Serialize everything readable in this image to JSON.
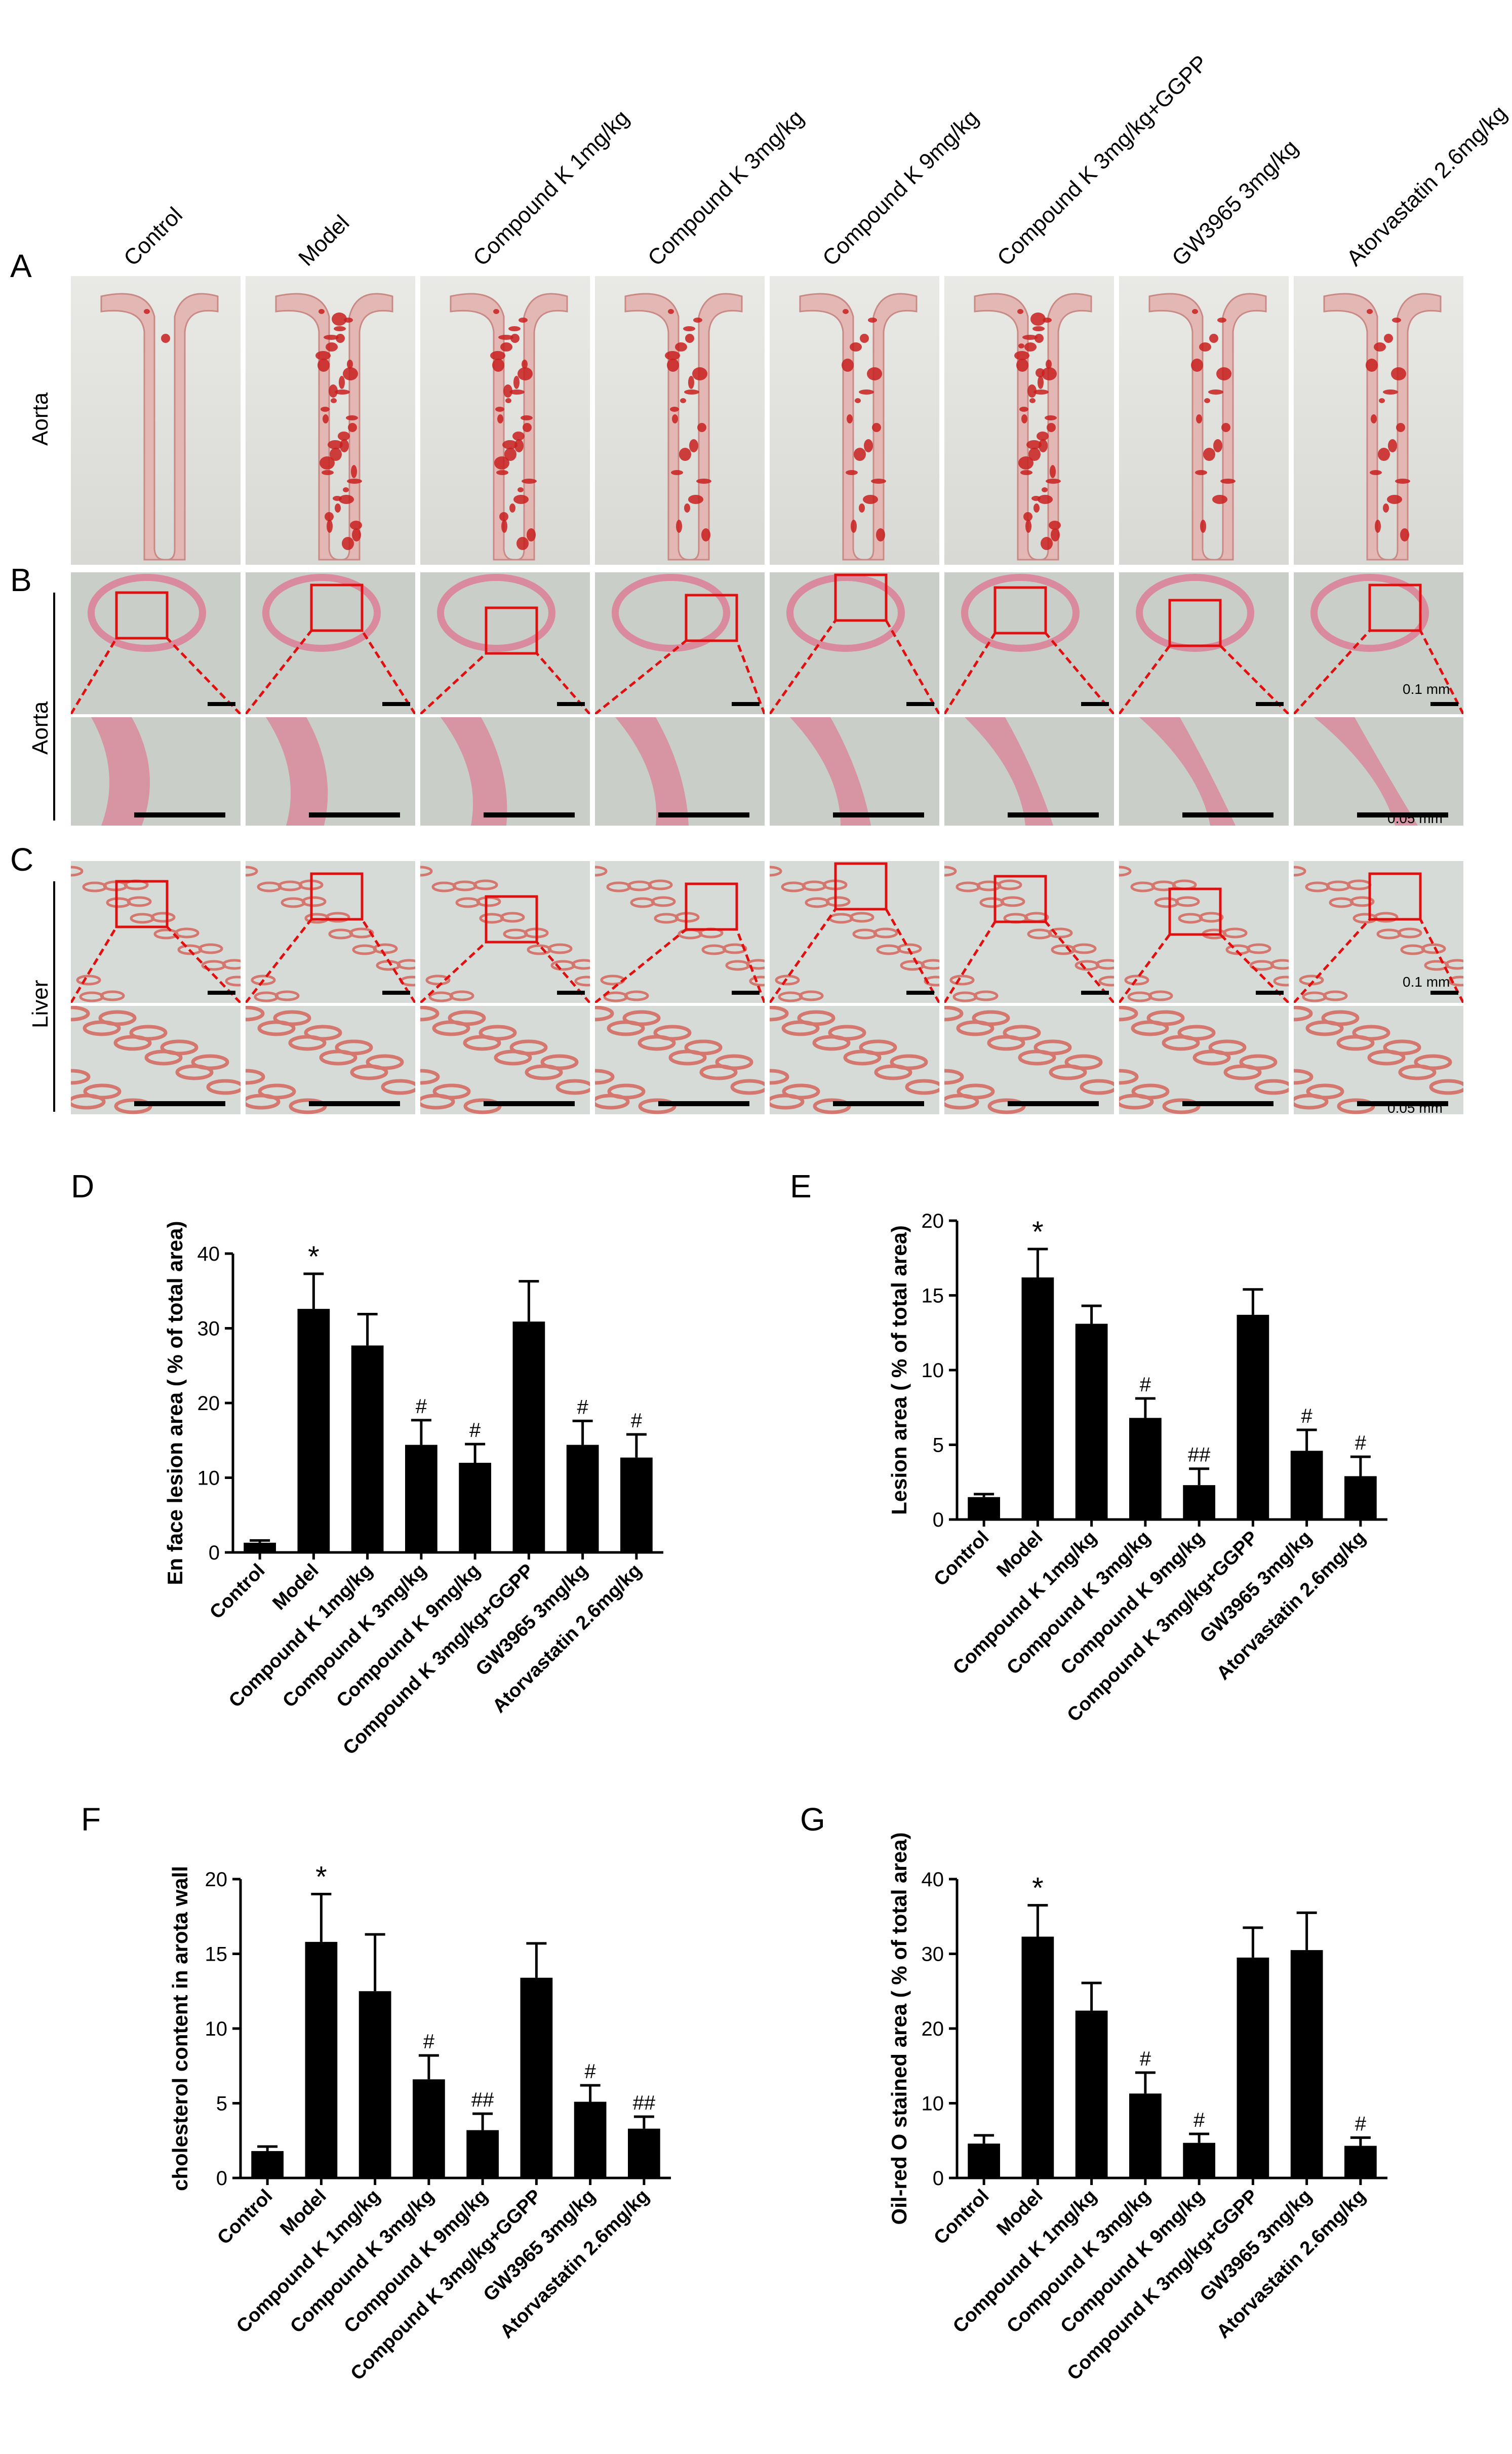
{
  "panel_letters": [
    "A",
    "B",
    "C",
    "D",
    "E",
    "F",
    "G"
  ],
  "groups": [
    "Control",
    "Model",
    "Compound K 1mg/kg",
    "Compound K 3mg/kg",
    "Compound K 9mg/kg",
    "Compound K 3mg/kg+GGPP",
    "GW3965 3mg/kg",
    "Atorvastatin 2.6mg/kg"
  ],
  "row_labels": {
    "aorta_a": "Aorta",
    "aorta_b": "Aorta",
    "liver_c": "Liver"
  },
  "scale_bars": {
    "b_top": "0.1 mm",
    "b_bottom": "0.05 mm",
    "c_top": "0.1 mm",
    "c_bottom": "0.05 mm"
  },
  "colors": {
    "bar": "#000000",
    "stain": "#c8201e",
    "tissue_pink": "#e8a9b6",
    "bg_gray": "#c9cdc9",
    "roi_box": "#e01010"
  },
  "chart_data": [
    {
      "panel": "D",
      "type": "bar",
      "ylabel": "En face lesion area ( % of total area)",
      "categories": [
        "Control",
        "Model",
        "Compound K 1mg/kg",
        "Compound K 3mg/kg",
        "Compound K 9mg/kg",
        "Compound K 3mg/kg+GGPP",
        "GW3965 3mg/kg",
        "Atorvastatin 2.6mg/kg"
      ],
      "values": [
        1.3,
        32.6,
        27.7,
        14.4,
        12.0,
        30.9,
        14.4,
        12.7
      ],
      "errors": [
        0.3,
        4.7,
        4.2,
        3.3,
        2.5,
        5.4,
        3.2,
        3.1
      ],
      "annotations": [
        "",
        "*",
        "",
        "#",
        "#",
        "",
        "#",
        "#"
      ],
      "ylim": [
        0,
        40
      ],
      "yticks": [
        0,
        10,
        20,
        30,
        40
      ],
      "grid": false
    },
    {
      "panel": "E",
      "type": "bar",
      "ylabel": "Lesion area ( % of total area)",
      "categories": [
        "Control",
        "Model",
        "Compound K 1mg/kg",
        "Compound K 3mg/kg",
        "Compound K 9mg/kg",
        "Compound K 3mg/kg+GGPP",
        "GW3965 3mg/kg",
        "Atorvastatin 2.6mg/kg"
      ],
      "values": [
        1.5,
        16.2,
        13.1,
        6.8,
        2.3,
        13.7,
        4.6,
        2.9
      ],
      "errors": [
        0.2,
        1.9,
        1.2,
        1.3,
        1.1,
        1.7,
        1.4,
        1.3
      ],
      "annotations": [
        "",
        "*",
        "",
        "#",
        "##",
        "",
        "#",
        "#"
      ],
      "ylim": [
        0,
        20
      ],
      "yticks": [
        0,
        5,
        10,
        15,
        20
      ],
      "grid": false
    },
    {
      "panel": "F",
      "type": "bar",
      "ylabel": "cholesterol content in arota wall",
      "categories": [
        "Control",
        "Model",
        "Compound K 1mg/kg",
        "Compound K 3mg/kg",
        "Compound K 9mg/kg",
        "Compound K 3mg/kg+GGPP",
        "GW3965 3mg/kg",
        "Atorvastatin 2.6mg/kg"
      ],
      "values": [
        1.8,
        15.8,
        12.5,
        6.6,
        3.2,
        13.4,
        5.1,
        3.3
      ],
      "errors": [
        0.3,
        3.2,
        3.8,
        1.6,
        1.1,
        2.3,
        1.1,
        0.8
      ],
      "annotations": [
        "",
        "*",
        "",
        "#",
        "##",
        "",
        "#",
        "##"
      ],
      "ylim": [
        0,
        20
      ],
      "yticks": [
        0,
        5,
        10,
        15,
        20
      ],
      "grid": false
    },
    {
      "panel": "G",
      "type": "bar",
      "ylabel": "Oil-red O stained area ( % of total area)",
      "categories": [
        "Control",
        "Model",
        "Compound K 1mg/kg",
        "Compound K 3mg/kg",
        "Compound K 9mg/kg",
        "Compound K 3mg/kg+GGPP",
        "GW3965 3mg/kg",
        "Atorvastatin 2.6mg/kg"
      ],
      "values": [
        4.6,
        32.3,
        22.4,
        11.3,
        4.7,
        29.5,
        30.5,
        4.3
      ],
      "errors": [
        1.1,
        4.2,
        3.7,
        2.8,
        1.2,
        4.0,
        5.0,
        1.1
      ],
      "annotations": [
        "",
        "*",
        "",
        "#",
        "#",
        "",
        "",
        "#"
      ],
      "ylim": [
        0,
        40
      ],
      "yticks": [
        0,
        10,
        20,
        30,
        40
      ],
      "grid": false
    }
  ]
}
